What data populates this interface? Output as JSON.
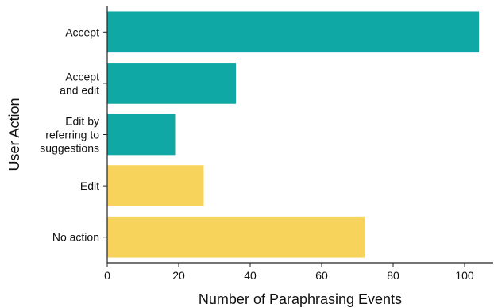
{
  "chart_data": {
    "type": "bar",
    "orientation": "horizontal",
    "categories": [
      [
        "Accept"
      ],
      [
        "Accept",
        "and edit"
      ],
      [
        "Edit by",
        "referring to",
        "suggestions"
      ],
      [
        "Edit"
      ],
      [
        "No action"
      ]
    ],
    "values": [
      104,
      36,
      19,
      27,
      72
    ],
    "colors": [
      "#10a8a5",
      "#10a8a5",
      "#10a8a5",
      "#f7d35c",
      "#f7d35c"
    ],
    "xlabel": "Number of Paraphrasing Events",
    "ylabel": "User Action",
    "xlim": [
      0,
      108
    ],
    "xticks": [
      0,
      20,
      40,
      60,
      80,
      100
    ],
    "grid": false,
    "legend": "none"
  }
}
